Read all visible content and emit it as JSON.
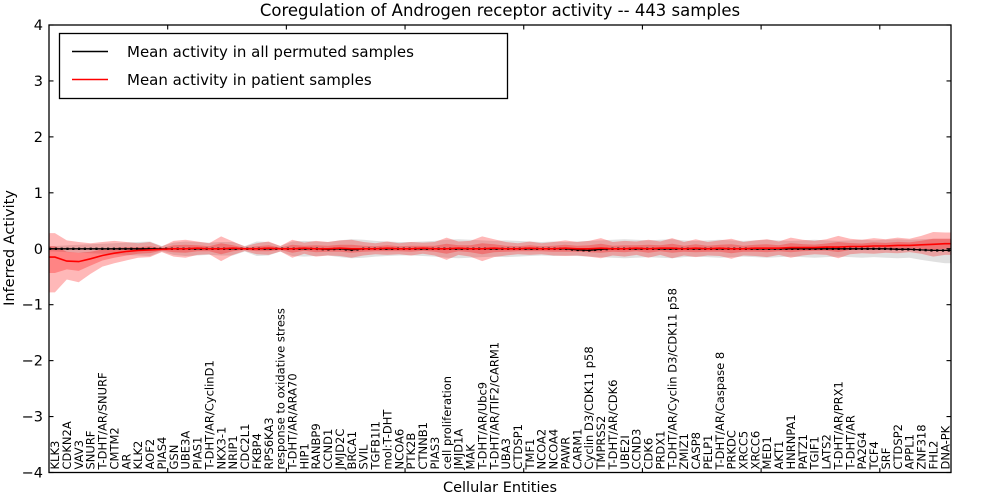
{
  "chart_data": {
    "type": "line",
    "title": "Coregulation of Androgen receptor activity -- 443 samples",
    "xlabel": "Cellular Entities",
    "ylabel": "Inferred Activity",
    "ylim": [
      -4,
      4
    ],
    "xlim": [
      0,
      76
    ],
    "yticks": [
      -4,
      -3,
      -2,
      -1,
      0,
      1,
      2,
      3,
      4
    ],
    "x_major_ticks": [
      10,
      20,
      30,
      40,
      50,
      60,
      70
    ],
    "grid": false,
    "legend_position": "upper left",
    "colors": {
      "permuted_line": "#000000",
      "patient_line": "#ff0000",
      "permuted_band": "#999999",
      "patient_band": "#ff0000"
    },
    "legend": [
      {
        "label": "Mean activity in all permuted samples",
        "color": "#000000"
      },
      {
        "label": "Mean activity in patient samples",
        "color": "#ff0000"
      }
    ],
    "categories": [
      "KLK3",
      "CDKN2A",
      "VAV3",
      "SNURF",
      "T-DHT/AR/SNURF",
      "CMTM2",
      "AR",
      "KLK2",
      "AOF2",
      "PIAS4",
      "GSN",
      "UBE3A",
      "PIAS1",
      "T-DHT/AR/CyclinD1",
      "NKX3-1",
      "NRIP1",
      "CDC2L1",
      "FKBP4",
      "RPS6KA3",
      "response to oxidative stress",
      "T-DHT/AR/ARA70",
      "HIP1",
      "RANBP9",
      "CCND1",
      "JMJD2C",
      "BRCA1",
      "SVIL",
      "TGFB1I1",
      "mol:T-DHT",
      "NCOA6",
      "PTK2B",
      "CTNNB1",
      "PIAS3",
      "cell proliferation",
      "JMJD1A",
      "MAK",
      "T-DHT/AR/Ubc9",
      "T-DHT/AR/TIF2/CARM1",
      "UBA3",
      "CTDSP1",
      "TMF1",
      "NCOA2",
      "NCOA4",
      "PAWR",
      "CARM1",
      "Cyclin D3/CDK11 p58",
      "TMPRSS2",
      "T-DHT/AR/CDK6",
      "UBE2I",
      "CCND3",
      "CDK6",
      "PRDX1",
      "T-DHT/AR/Cyclin D3/CDK11 p58",
      "ZMIZ1",
      "CASP8",
      "PELP1",
      "T-DHT/AR/Caspase 8",
      "PRKDC",
      "XRCC5",
      "XRCC6",
      "MED1",
      "AKT1",
      "HNRNPA1",
      "PATZ1",
      "TGIF1",
      "LATS2",
      "T-DHT/AR/PRX1",
      "T-DHT/AR",
      "PA2G4",
      "TCF4",
      "SRF",
      "CTDSP2",
      "APPL1",
      "ZNF318",
      "FHL2",
      "DNA-PK"
    ],
    "series": [
      {
        "name": "Mean activity in all permuted samples",
        "color": "#000000",
        "values": [
          0,
          0,
          0,
          0,
          0,
          0,
          0,
          0,
          0,
          0,
          0,
          0,
          0,
          0,
          0,
          0,
          0,
          0,
          0,
          0,
          0,
          0,
          0,
          -0.01,
          0,
          -0.02,
          0,
          0,
          0,
          0,
          0,
          0,
          0,
          0,
          0,
          0,
          0,
          0,
          0,
          0,
          0,
          0,
          0,
          0,
          -0.02,
          -0.03,
          -0.01,
          0,
          0,
          0,
          0,
          0,
          0,
          0,
          0,
          0,
          0,
          0,
          0,
          0,
          0,
          0,
          0,
          0,
          0,
          0,
          0,
          0,
          0,
          0,
          0,
          -0.01,
          -0.01,
          -0.02,
          -0.03,
          -0.03
        ]
      },
      {
        "name": "Mean activity in patient samples",
        "color": "#ff0000",
        "values": [
          -0.15,
          -0.22,
          -0.23,
          -0.18,
          -0.12,
          -0.08,
          -0.05,
          -0.03,
          -0.02,
          -0.01,
          0,
          0,
          0.01,
          0,
          0,
          0.01,
          0,
          0,
          0.01,
          0,
          0,
          0.01,
          0,
          0,
          0.01,
          0,
          0,
          0,
          0.01,
          0,
          0,
          0.01,
          0,
          0,
          0.01,
          0,
          0,
          0.01,
          0,
          0,
          0.01,
          0,
          0,
          0.01,
          0,
          0,
          0.01,
          0,
          0,
          0.01,
          0,
          0.01,
          0.01,
          0,
          0.01,
          0,
          0.01,
          0,
          0,
          0.01,
          0.01,
          0.01,
          0.02,
          0.02,
          0.02,
          0.03,
          0.03,
          0.04,
          0.04,
          0.05,
          0.05,
          0.06,
          0.06,
          0.07,
          0.08,
          0.09
        ]
      }
    ],
    "bands": [
      {
        "name": "permuted-confidence-band",
        "color": "#999999",
        "opacity": 0.3,
        "upper": [
          0.05,
          0.06,
          0.07,
          0.08,
          0.09,
          0.1,
          0.11,
          0.12,
          0.13,
          0.05,
          0.11,
          0.13,
          0.12,
          0.11,
          0.12,
          0.12,
          0.05,
          0.13,
          0.12,
          0.05,
          0.13,
          0.14,
          0.13,
          0.12,
          0.15,
          0.17,
          0.16,
          0.14,
          0.13,
          0.12,
          0.12,
          0.13,
          0.14,
          0.16,
          0.17,
          0.16,
          0.15,
          0.14,
          0.15,
          0.14,
          0.13,
          0.12,
          0.13,
          0.12,
          0.13,
          0.14,
          0.15,
          0.16,
          0.17,
          0.16,
          0.15,
          0.16,
          0.17,
          0.15,
          0.14,
          0.15,
          0.16,
          0.15,
          0.14,
          0.15,
          0.16,
          0.15,
          0.14,
          0.15,
          0.16,
          0.15,
          0.14,
          0.15,
          0.16,
          0.15,
          0.16,
          0.17,
          0.16,
          0.17,
          0.18,
          0.18
        ],
        "lower": [
          -0.05,
          -0.06,
          -0.07,
          -0.08,
          -0.09,
          -0.1,
          -0.11,
          -0.12,
          -0.13,
          -0.05,
          -0.11,
          -0.13,
          -0.12,
          -0.11,
          -0.12,
          -0.12,
          -0.05,
          -0.13,
          -0.12,
          -0.05,
          -0.13,
          -0.14,
          -0.13,
          -0.12,
          -0.15,
          -0.17,
          -0.16,
          -0.14,
          -0.13,
          -0.12,
          -0.12,
          -0.13,
          -0.14,
          -0.16,
          -0.17,
          -0.16,
          -0.15,
          -0.14,
          -0.15,
          -0.14,
          -0.13,
          -0.12,
          -0.13,
          -0.12,
          -0.13,
          -0.14,
          -0.15,
          -0.16,
          -0.17,
          -0.16,
          -0.15,
          -0.16,
          -0.17,
          -0.15,
          -0.14,
          -0.15,
          -0.16,
          -0.15,
          -0.14,
          -0.15,
          -0.16,
          -0.15,
          -0.14,
          -0.15,
          -0.16,
          -0.15,
          -0.14,
          -0.15,
          -0.16,
          -0.15,
          -0.16,
          -0.17,
          -0.16,
          -0.2,
          -0.23,
          -0.26
        ]
      },
      {
        "name": "patient-confidence-band",
        "color": "#ff0000",
        "opacity": 0.28,
        "upper": [
          0.28,
          0.15,
          0.12,
          0.1,
          0.12,
          0.14,
          0.12,
          0.1,
          0.12,
          0.04,
          0.14,
          0.16,
          0.13,
          0.1,
          0.22,
          0.13,
          0.04,
          0.1,
          0.13,
          0.05,
          0.16,
          0.11,
          0.14,
          0.12,
          0.15,
          0.16,
          0.12,
          0.1,
          0.13,
          0.1,
          0.12,
          0.11,
          0.12,
          0.2,
          0.13,
          0.14,
          0.22,
          0.17,
          0.12,
          0.1,
          0.13,
          0.1,
          0.12,
          0.15,
          0.12,
          0.14,
          0.19,
          0.12,
          0.14,
          0.13,
          0.16,
          0.13,
          0.19,
          0.12,
          0.17,
          0.12,
          0.15,
          0.18,
          0.12,
          0.15,
          0.17,
          0.13,
          0.2,
          0.16,
          0.14,
          0.17,
          0.23,
          0.18,
          0.16,
          0.19,
          0.17,
          0.2,
          0.18,
          0.23,
          0.3,
          0.29
        ],
        "lower": [
          -0.78,
          -0.55,
          -0.6,
          -0.45,
          -0.32,
          -0.26,
          -0.21,
          -0.16,
          -0.15,
          -0.06,
          -0.14,
          -0.16,
          -0.11,
          -0.1,
          -0.22,
          -0.11,
          -0.04,
          -0.1,
          -0.11,
          -0.05,
          -0.16,
          -0.09,
          -0.14,
          -0.12,
          -0.13,
          -0.16,
          -0.12,
          -0.1,
          -0.11,
          -0.1,
          -0.12,
          -0.09,
          -0.12,
          -0.2,
          -0.11,
          -0.14,
          -0.22,
          -0.15,
          -0.12,
          -0.1,
          -0.11,
          -0.1,
          -0.12,
          -0.13,
          -0.12,
          -0.14,
          -0.17,
          -0.12,
          -0.14,
          -0.11,
          -0.16,
          -0.11,
          -0.17,
          -0.12,
          -0.15,
          -0.12,
          -0.13,
          -0.18,
          -0.12,
          -0.13,
          -0.15,
          -0.11,
          -0.16,
          -0.12,
          -0.1,
          -0.11,
          -0.17,
          -0.1,
          -0.08,
          -0.09,
          -0.07,
          -0.08,
          -0.06,
          -0.09,
          -0.14,
          -0.11
        ]
      }
    ]
  }
}
